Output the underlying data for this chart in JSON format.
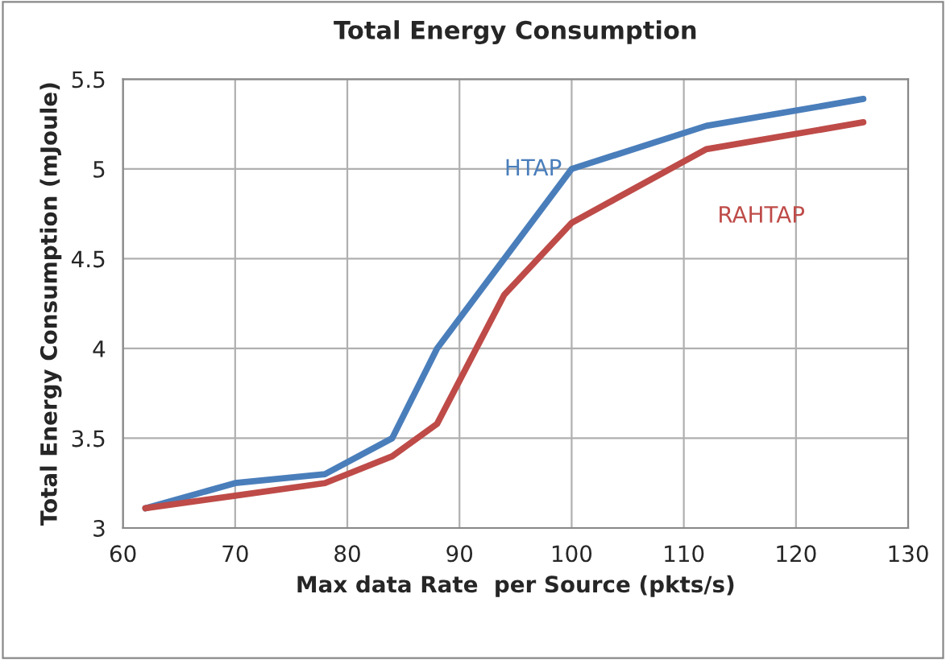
{
  "chart_data": {
    "type": "line",
    "title": "Total Energy Consumption",
    "xlabel": "Max data Rate  per Source (pkts/s)",
    "ylabel": "Total Energy Consumption (mJoule)",
    "x": [
      62,
      70,
      78,
      84,
      88,
      94,
      100,
      112,
      126
    ],
    "series": [
      {
        "name": "HTAP",
        "color": "#4a7ebb",
        "values": [
          3.11,
          3.25,
          3.3,
          3.5,
          4.0,
          4.5,
          5.0,
          5.24,
          5.39
        ]
      },
      {
        "name": "RAHTAP",
        "color": "#be4b48",
        "values": [
          3.11,
          3.18,
          3.25,
          3.4,
          3.58,
          4.3,
          4.7,
          5.11,
          5.26
        ]
      }
    ],
    "xlim": [
      60,
      130
    ],
    "xticks": [
      60,
      70,
      80,
      90,
      100,
      110,
      120,
      130
    ],
    "ylim": [
      3,
      5.5
    ],
    "yticks": [
      3,
      3.5,
      4,
      4.5,
      5,
      5.5
    ],
    "grid": true,
    "marker": "none",
    "line_style": "solid",
    "legend": false
  }
}
